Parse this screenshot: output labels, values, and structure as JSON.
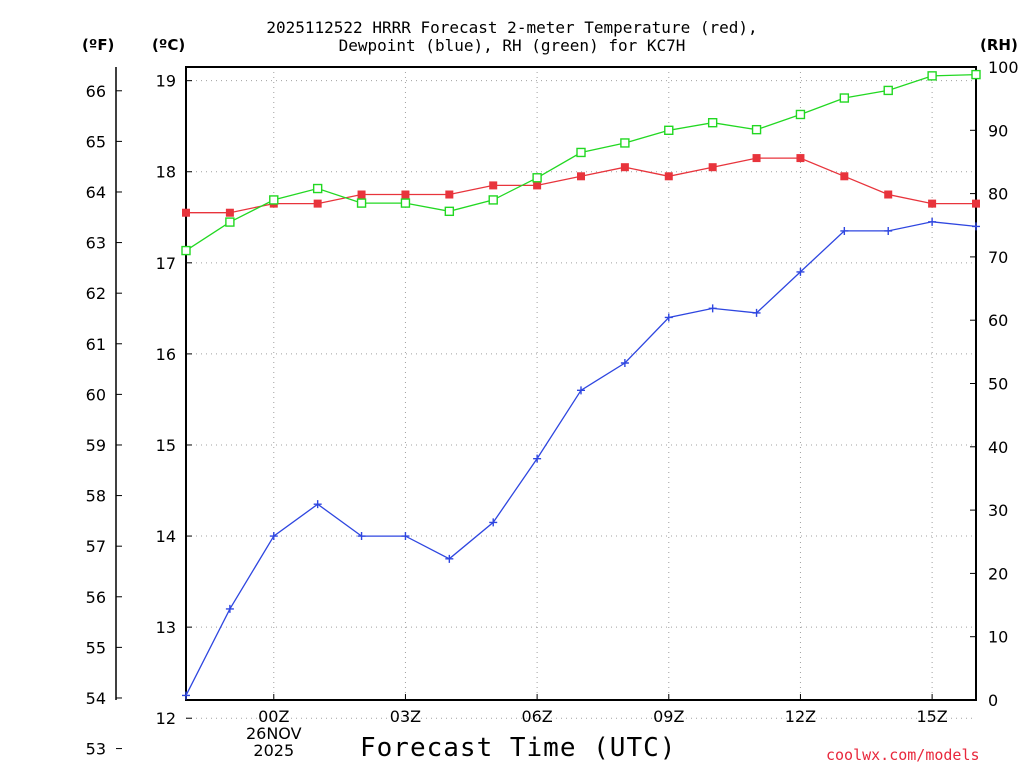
{
  "title_lines": [
    "2025112522 HRRR Forecast 2-meter Temperature (red),",
    "Dewpoint (blue), RH (green) for KC7H"
  ],
  "units": {
    "f": "(ºF)",
    "c": "(ºC)",
    "rh": "(RH)"
  },
  "x_axis_title": "Forecast Time (UTC)",
  "credit": "coolwx.com/models",
  "colors": {
    "temperature": "#e8343c",
    "dewpoint": "#2e46e0",
    "rh": "#22d822",
    "grid": "#a0a0a0"
  },
  "chart_data": {
    "type": "line",
    "title": "2025112522 HRRR Forecast 2-meter Temperature (red), Dewpoint (blue), RH (green) for KC7H",
    "xlabel": "Forecast Time (UTC)",
    "x_hours": [
      22,
      23,
      24,
      25,
      26,
      27,
      28,
      29,
      30,
      31,
      32,
      33,
      34,
      35,
      36,
      37,
      38,
      39,
      40
    ],
    "x_ticks": [
      {
        "hour": 24,
        "labels": [
          "00Z",
          "26NOV",
          "2025"
        ]
      },
      {
        "hour": 27,
        "labels": [
          "03Z"
        ]
      },
      {
        "hour": 30,
        "labels": [
          "06Z"
        ]
      },
      {
        "hour": 33,
        "labels": [
          "09Z"
        ]
      },
      {
        "hour": 36,
        "labels": [
          "12Z"
        ]
      },
      {
        "hour": 39,
        "labels": [
          "15Z"
        ]
      }
    ],
    "xlim": [
      22,
      40
    ],
    "ylim_c": [
      12.2,
      19.15
    ],
    "ylim_rh": [
      0,
      100
    ],
    "y_ticks_c": [
      12,
      13,
      14,
      15,
      16,
      17,
      18,
      19
    ],
    "y_ticks_f": [
      53,
      54,
      55,
      56,
      57,
      58,
      59,
      60,
      61,
      62,
      63,
      64,
      65,
      66
    ],
    "y_ticks_rh": [
      0,
      10,
      20,
      30,
      40,
      50,
      60,
      70,
      80,
      90,
      100
    ],
    "series": [
      {
        "name": "Temperature",
        "unit": "C",
        "color": "#e8343c",
        "marker": "filled-square",
        "values": [
          17.55,
          17.55,
          17.65,
          17.65,
          17.75,
          17.75,
          17.75,
          17.85,
          17.85,
          17.95,
          18.05,
          17.95,
          18.05,
          18.15,
          18.15,
          17.95,
          17.75,
          17.65,
          17.65
        ]
      },
      {
        "name": "Dewpoint",
        "unit": "C",
        "color": "#2e46e0",
        "marker": "plus",
        "values": [
          12.25,
          13.2,
          14.0,
          14.35,
          14.0,
          14.0,
          13.75,
          14.15,
          14.85,
          15.6,
          15.9,
          16.4,
          16.5,
          16.45,
          16.9,
          17.35,
          17.35,
          17.45,
          17.4
        ]
      },
      {
        "name": "RH",
        "unit": "%",
        "color": "#22d822",
        "marker": "open-square",
        "values": [
          71,
          75.5,
          79,
          80.8,
          78.5,
          78.5,
          77.2,
          79,
          82.5,
          86.5,
          88,
          90,
          91.2,
          90.1,
          92.5,
          95.1,
          96.3,
          98.6,
          98.8
        ]
      }
    ]
  }
}
